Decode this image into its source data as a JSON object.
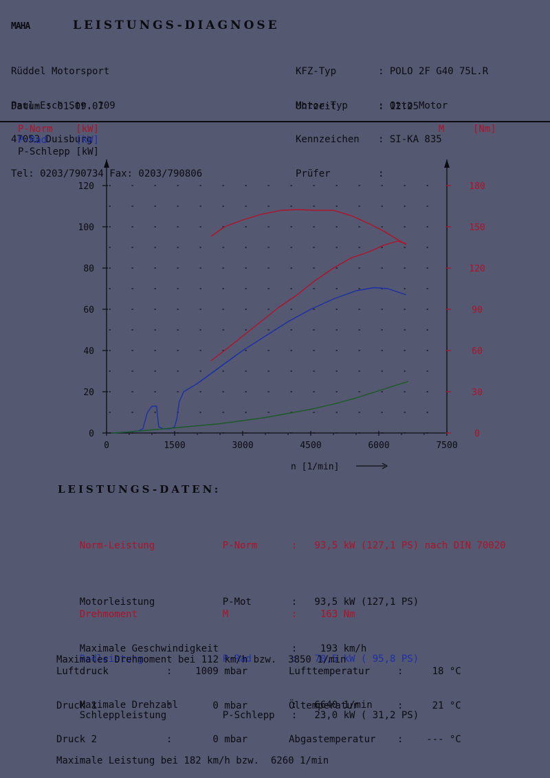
{
  "header": {
    "logo_text": "MAHA",
    "title": "LEISTUNGS-DIAGNOSE",
    "address": [
      "Rüddel Motorsport",
      "Paul-Esch Str. 109",
      "47053 Duisburg",
      "Tel: 0203/790734 Fax: 0203/790806"
    ],
    "vehicle_labels": [
      "KFZ-Typ",
      "Motor-Typ",
      "Kennzeichen",
      "Prüfer"
    ],
    "vehicle_values": [
      ": POLO 2F G40 75L.R",
      ": Otto Motor",
      ": SI-KA 835",
      ":"
    ],
    "date_label": "Datum : 01.09.07",
    "time_label": "Uhrzeit",
    "time_value": ": 12:25"
  },
  "legend": {
    "p_norm": "P-Norm    [kW]",
    "p_rad": "P-Rad     [kW]",
    "p_schlepp": "P-Schlepp [kW]",
    "m_symbol": "M",
    "m_unit": "[Nm]"
  },
  "colors": {
    "p_norm": "#b0122a",
    "p_rad": "#1d2fa5",
    "p_schlepp": "#1a5a26",
    "torque": "#b0122a",
    "axis": "#0b0b12",
    "background": "#545870"
  },
  "chart_data": {
    "type": "line",
    "xlabel": "n [1/min]",
    "xlim": [
      0,
      7500
    ],
    "x_ticks": [
      0,
      1500,
      3000,
      4500,
      6000,
      7500
    ],
    "y_left_ticks": [
      0,
      20,
      40,
      60,
      80,
      100,
      120
    ],
    "y_left_lim": [
      0,
      120
    ],
    "y_right_ticks": [
      0,
      30,
      60,
      90,
      120,
      150,
      180
    ],
    "y_right_lim": [
      0,
      180
    ],
    "grid": "dotted",
    "series": [
      {
        "name": "P-Norm",
        "axis": "left",
        "unit": "kW",
        "x": [
          2300,
          2600,
          3000,
          3400,
          3800,
          4200,
          4600,
          5000,
          5400,
          5800,
          6100,
          6400,
          6600
        ],
        "y": [
          35,
          40,
          47,
          54,
          61,
          67,
          74,
          80,
          85,
          88,
          91,
          93,
          92
        ]
      },
      {
        "name": "P-Rad",
        "axis": "left",
        "unit": "kW",
        "x": [
          100,
          500,
          700,
          800,
          900,
          1000,
          1100,
          1150,
          1250,
          1400,
          1500,
          1550,
          1600,
          1700,
          2000,
          2500,
          3000,
          3500,
          4000,
          4500,
          5000,
          5500,
          5900,
          6200,
          6600
        ],
        "y": [
          0,
          0.5,
          1,
          2,
          10,
          13,
          13,
          3,
          2,
          2,
          3,
          7,
          15,
          20,
          24,
          32,
          40,
          47,
          54,
          60,
          65,
          69,
          70.5,
          70,
          67
        ]
      },
      {
        "name": "P-Schlepp",
        "axis": "left",
        "unit": "kW",
        "x": [
          100,
          500,
          1000,
          1500,
          2000,
          2500,
          3000,
          3500,
          4000,
          4500,
          5000,
          5500,
          6000,
          6500,
          6650
        ],
        "y": [
          0,
          0.5,
          1.5,
          2.5,
          3.5,
          4.5,
          6,
          7.5,
          9.5,
          11.5,
          14,
          17,
          20.5,
          24,
          25
        ]
      },
      {
        "name": "M",
        "axis": "right",
        "unit": "Nm",
        "x": [
          2300,
          2600,
          3000,
          3400,
          3850,
          4200,
          4600,
          5000,
          5400,
          5800,
          6100,
          6400,
          6600
        ],
        "y": [
          143,
          150,
          155,
          159,
          162,
          162.5,
          162,
          162,
          158,
          152,
          147,
          141,
          137
        ]
      }
    ]
  },
  "data_section": {
    "title": "LEISTUNGS-DATEN:",
    "rows": [
      {
        "label": "Norm-Leistung",
        "sym": "P-Norm",
        "value": ":   93,5 kW (127,1 PS) nach DIN 70020",
        "color": "red"
      },
      {
        "label": "Motorleistung",
        "sym": "P-Mot",
        "value": ":   93,5 kW (127,1 PS)",
        "color": "black"
      },
      {
        "label": "Radleistung",
        "sym": "P-Rad",
        "value": ":   70,5 kW ( 95,8 PS)",
        "color": "blue"
      },
      {
        "label": "Schleppleistung",
        "sym": "P-Schlepp",
        "value": ":   23,0 kW ( 31,2 PS)",
        "color": "black"
      }
    ],
    "max_power": "Maximale Leistung bei 182 km/h bzw.  6260 1/min",
    "torque_label": "Drehmoment",
    "torque_sym": "M",
    "torque_value": ":    163 Nm",
    "max_torque": "Maximales Drehmoment bei 112 km/h bzw.  3850 1/min",
    "max_speed_label": "Maximale Geschwindigkeit",
    "max_speed_value": ":    193 km/h",
    "max_rpm_label": "Maximale Drehzahl",
    "max_rpm_value": ":   6640 1/min",
    "env_left_labels": [
      "Luftdruck",
      "Druck 1",
      "Druck 2"
    ],
    "env_left_values": [
      ":    1009 mbar",
      ":       0 mbar",
      ":       0 mbar"
    ],
    "env_right_labels": [
      "Lufttemperatur",
      "Öltemperatur",
      "Abgastemperatur"
    ],
    "env_right_values": [
      ":     18 °C",
      ":     21 °C",
      ":    --- °C"
    ]
  }
}
